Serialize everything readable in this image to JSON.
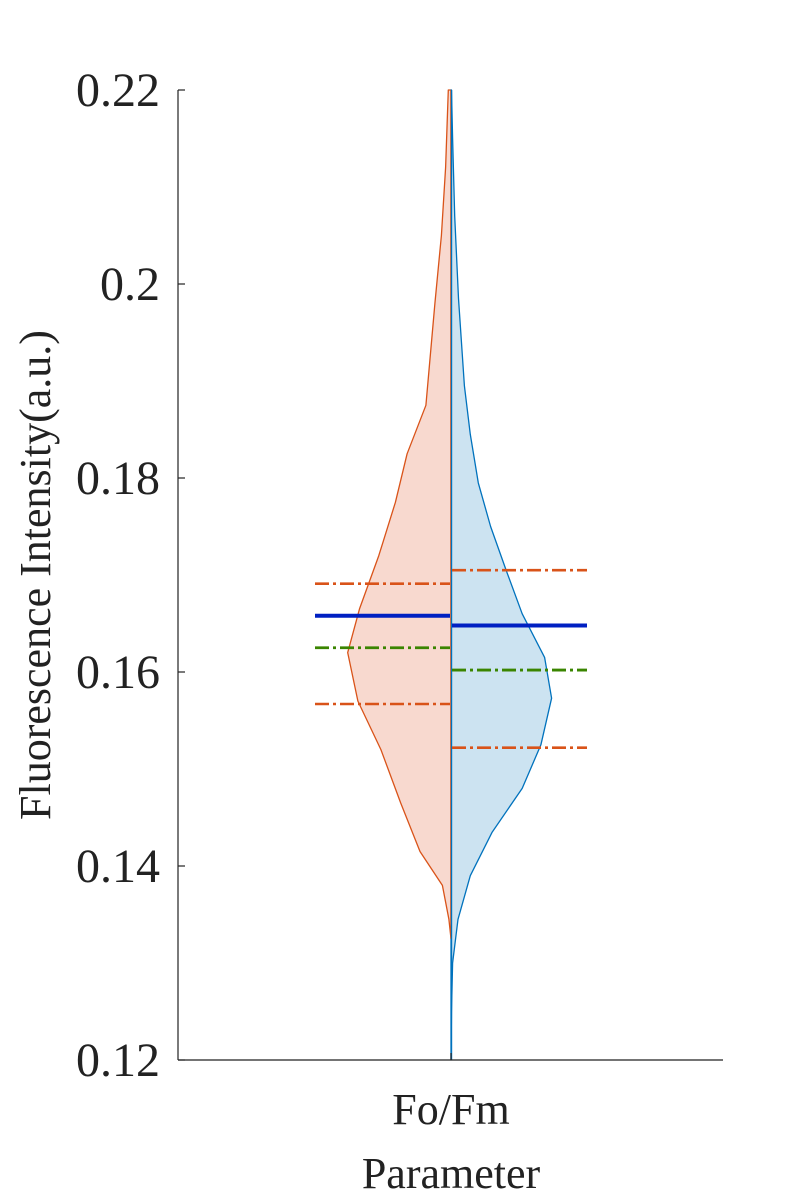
{
  "chart_data": {
    "type": "violin",
    "title": "",
    "xlabel": "Parameter",
    "ylabel": "Fluorescence Intensity(a.u.)",
    "ylim": [
      0.12,
      0.22
    ],
    "yticks": [
      0.12,
      0.14,
      0.16,
      0.18,
      0.2,
      0.22
    ],
    "ytick_labels": [
      "0.12",
      "0.14",
      "0.16",
      "0.18",
      "0.2",
      "0.22"
    ],
    "categories": [
      "Fo/Fm"
    ],
    "grid": false,
    "legend": "none",
    "series": [
      {
        "side": "left",
        "color": "#D95319",
        "fill": "#F8D9CF",
        "density": [
          [
            0.1325,
            0.0
          ],
          [
            0.1345,
            0.004
          ],
          [
            0.138,
            0.016
          ],
          [
            0.1415,
            0.058
          ],
          [
            0.1465,
            0.094
          ],
          [
            0.152,
            0.131
          ],
          [
            0.157,
            0.174
          ],
          [
            0.162,
            0.193
          ],
          [
            0.1665,
            0.171
          ],
          [
            0.172,
            0.135
          ],
          [
            0.1775,
            0.104
          ],
          [
            0.1825,
            0.082
          ],
          [
            0.1875,
            0.047
          ],
          [
            0.198,
            0.03
          ],
          [
            0.205,
            0.018
          ],
          [
            0.212,
            0.01
          ],
          [
            0.22,
            0.005
          ]
        ],
        "mean": 0.1658,
        "median": 0.1625,
        "q1": 0.1567,
        "q3": 0.1691
      },
      {
        "side": "right",
        "color": "#0072BD",
        "fill": "#CCE3F1",
        "density": [
          [
            0.12,
            0.0
          ],
          [
            0.125,
            0.001
          ],
          [
            0.13,
            0.003
          ],
          [
            0.1345,
            0.013
          ],
          [
            0.139,
            0.036
          ],
          [
            0.1435,
            0.077
          ],
          [
            0.148,
            0.133
          ],
          [
            0.1525,
            0.168
          ],
          [
            0.1573,
            0.188
          ],
          [
            0.1615,
            0.175
          ],
          [
            0.166,
            0.133
          ],
          [
            0.1705,
            0.103
          ],
          [
            0.175,
            0.074
          ],
          [
            0.1795,
            0.051
          ],
          [
            0.1845,
            0.036
          ],
          [
            0.1895,
            0.025
          ],
          [
            0.1985,
            0.014
          ],
          [
            0.207,
            0.007
          ],
          [
            0.215,
            0.003
          ],
          [
            0.22,
            0.001
          ]
        ],
        "mean": 0.1648,
        "median": 0.1602,
        "q1": 0.1522,
        "q3": 0.1705
      }
    ],
    "line_colors": {
      "mean": "#0020C2",
      "median": "#3A8500",
      "quartile": "#D95319"
    }
  }
}
